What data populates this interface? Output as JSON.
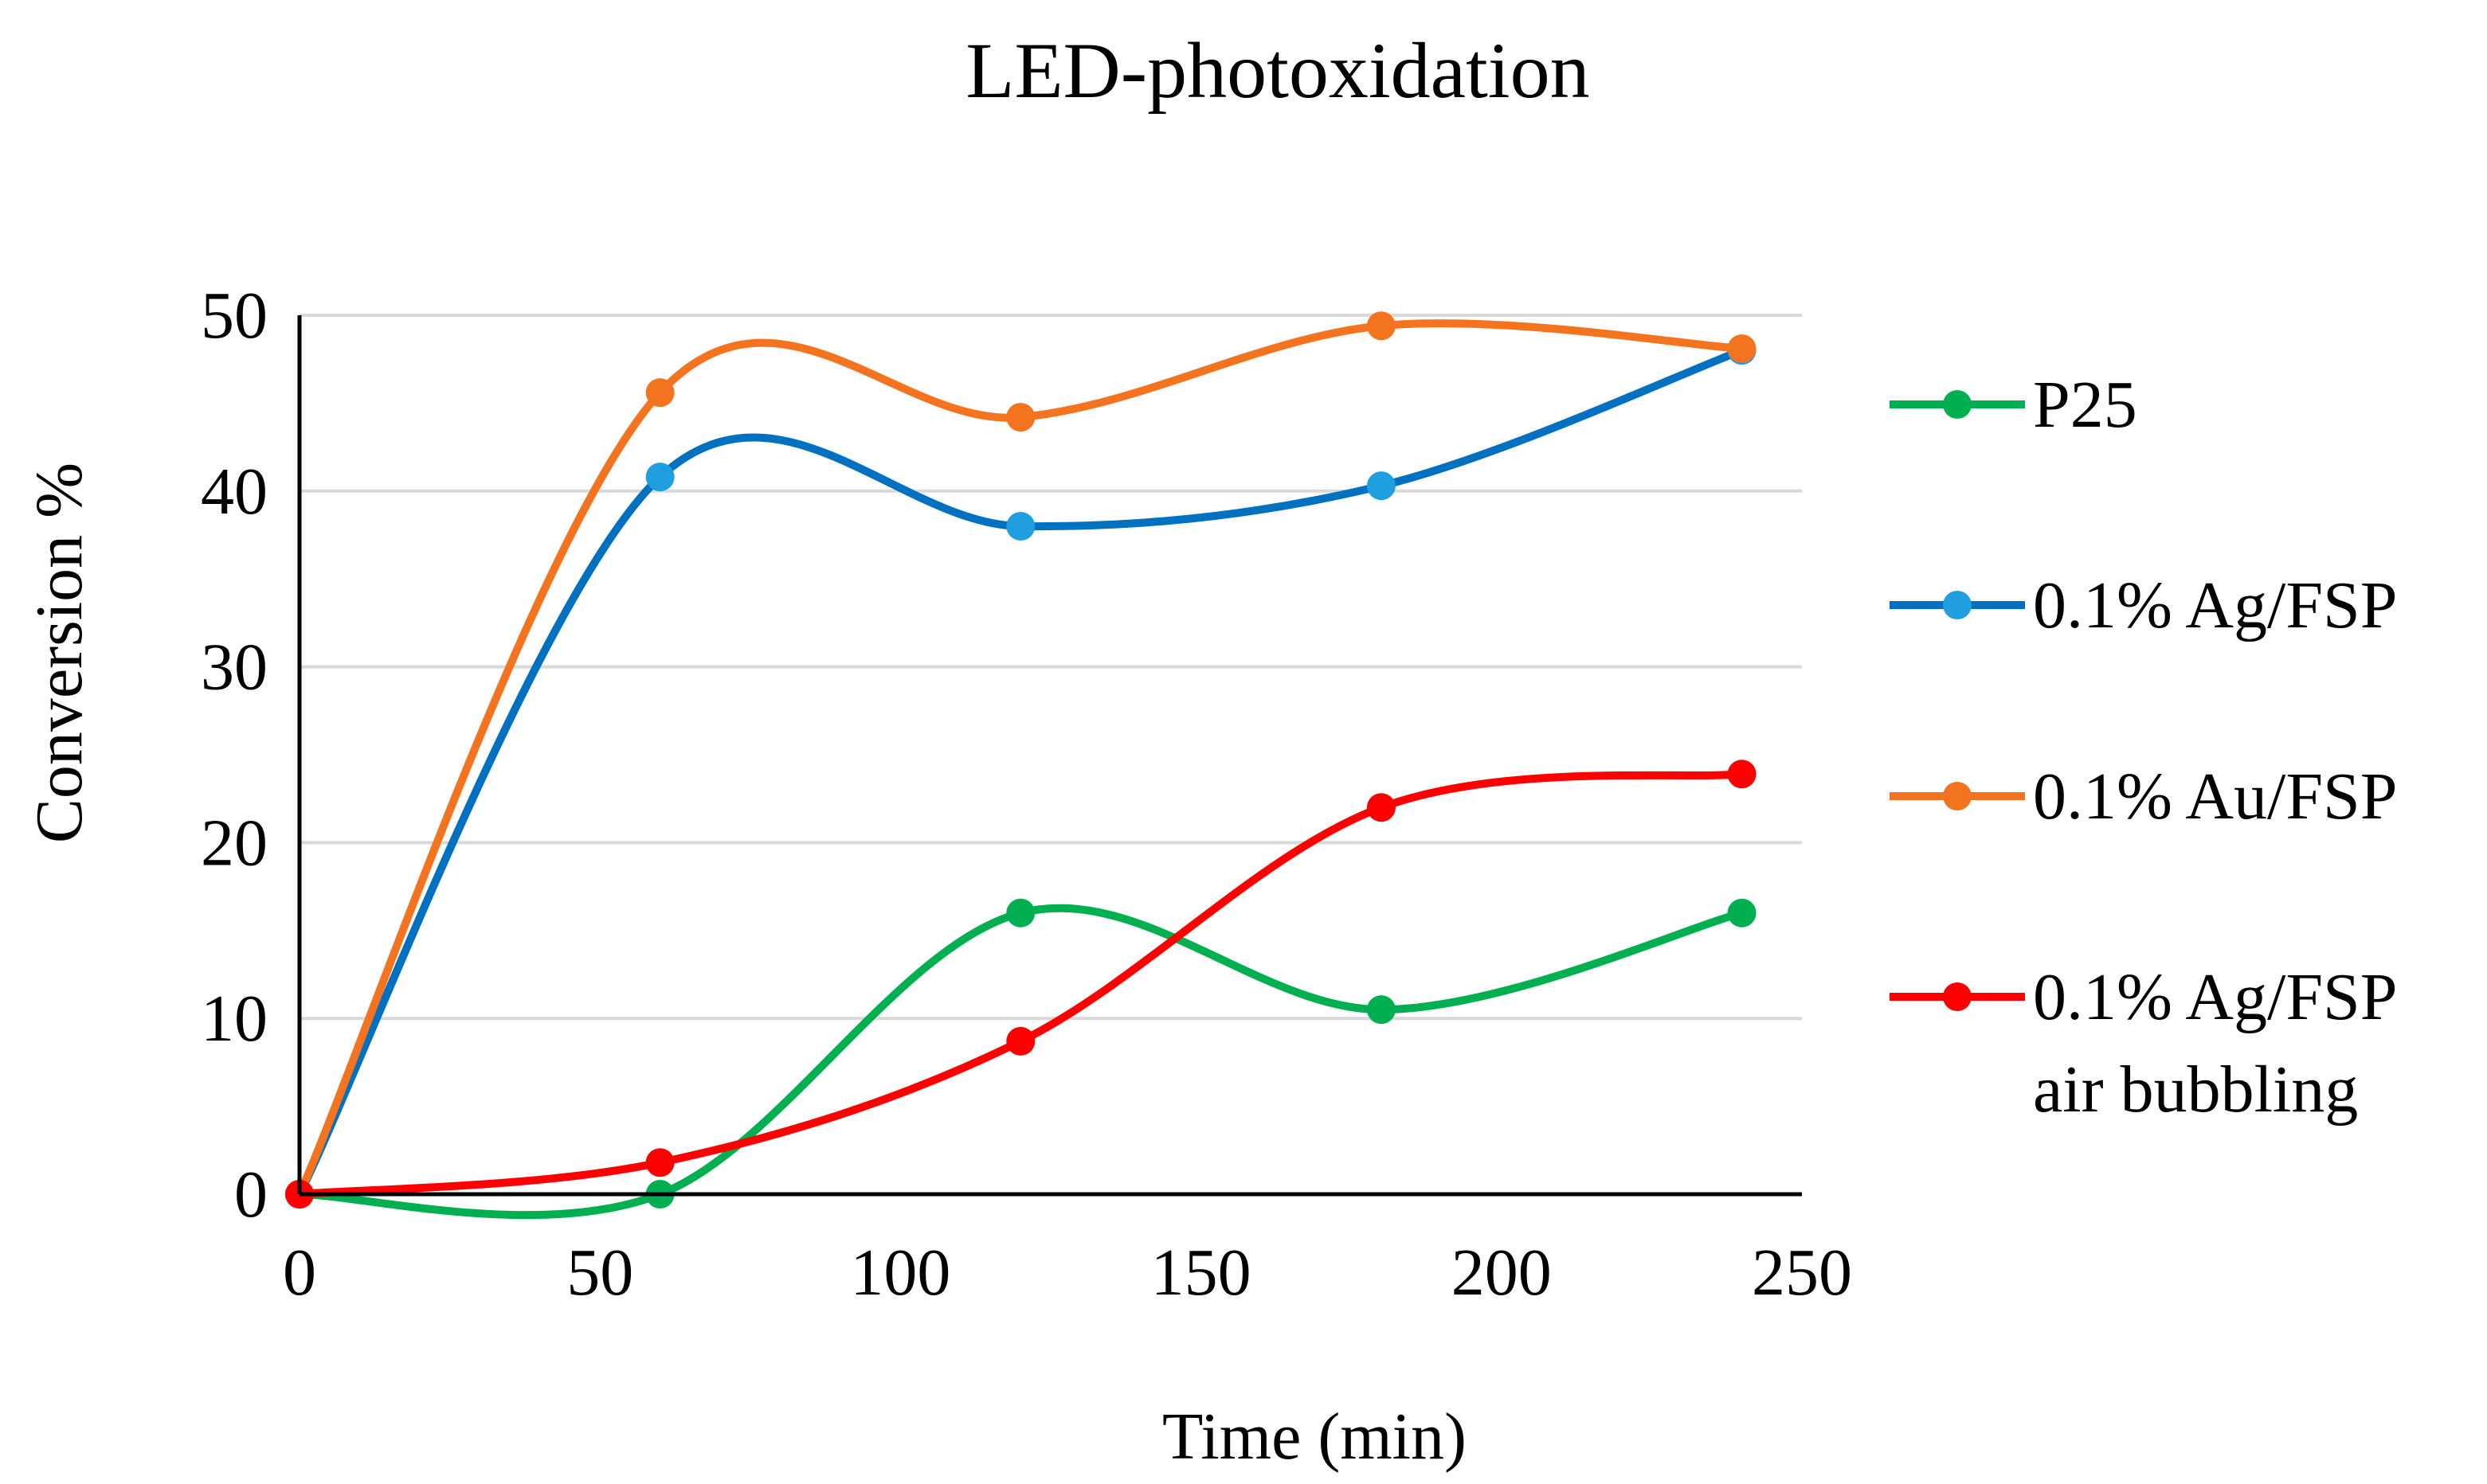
{
  "chart_data": {
    "type": "line",
    "title": "LED-photoxidation",
    "xlabel": "Time (min)",
    "ylabel": "Conversion %",
    "xlim": [
      0,
      250
    ],
    "ylim": [
      0,
      50
    ],
    "xticks": [
      0,
      50,
      100,
      150,
      200,
      250
    ],
    "yticks": [
      0,
      10,
      20,
      30,
      40,
      50
    ],
    "xtick_labels": [
      "0",
      "50",
      "100",
      "150",
      "200",
      "250"
    ],
    "ytick_labels": [
      "0",
      "10",
      "20",
      "30",
      "40",
      "50"
    ],
    "grid": "horizontal",
    "legend_position": "right",
    "x": [
      0,
      60,
      120,
      180,
      240
    ],
    "series": [
      {
        "name": "P25",
        "label_lines": [
          "P25"
        ],
        "color": "#00b050",
        "values": [
          0,
          0,
          16,
          10.5,
          16
        ]
      },
      {
        "name": "0.1% Ag/FSP",
        "label_lines": [
          "0.1% Ag/FSP"
        ],
        "color": "#0070c0",
        "marker_color": "#1f9ee0",
        "values": [
          0,
          40.8,
          38,
          40.3,
          48
        ]
      },
      {
        "name": "0.1% Au/FSP",
        "label_lines": [
          "0.1% Au/FSP"
        ],
        "color": "#f4731f",
        "values": [
          0,
          45.6,
          44.2,
          49.4,
          48.1
        ]
      },
      {
        "name": "0.1% Ag/FSP air bubbling",
        "label_lines": [
          "0.1% Ag/FSP",
          "air bubbling"
        ],
        "color": "#ff0000",
        "values": [
          0,
          1.8,
          8.7,
          22,
          23.9
        ]
      }
    ]
  }
}
